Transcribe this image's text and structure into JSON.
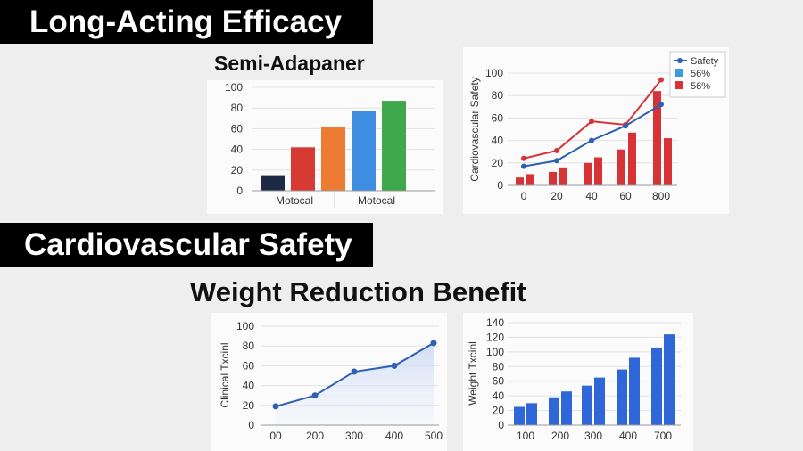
{
  "banners": {
    "top": "Long-Acting Efficacy",
    "bottom": "Cardiovascular Safety"
  },
  "headings": {
    "semi": "Semi-Adapaner",
    "weight": "Weight Reduction Benefit"
  },
  "colors": {
    "navy": "#1e2a44",
    "red": "#d63a33",
    "orange": "#ee7b34",
    "blue": "#3f8ee2",
    "green": "#40a84c",
    "line_blue": "#2d5fb3",
    "bar_red": "#d73236",
    "bar_blue": "#2f67d8",
    "legend_blue": "#3b9ae0"
  },
  "chart_data": [
    {
      "type": "bar",
      "title": "Semi-Adapaner",
      "categories": [
        "",
        "",
        "",
        "",
        ""
      ],
      "values": [
        15,
        42,
        62,
        77,
        87
      ],
      "bar_colors": [
        "#1e2a44",
        "#d63a33",
        "#ee7b34",
        "#3f8ee2",
        "#40a84c"
      ],
      "group_labels": [
        "Motocal",
        "Motocal"
      ],
      "yticks": [
        "0",
        "20",
        "40",
        "60",
        "80",
        "100"
      ],
      "ylim": [
        0,
        100
      ],
      "xlabel": "",
      "ylabel": ""
    },
    {
      "type": "bar+line",
      "ylabel": "Cardiovascular Safety",
      "xticks": [
        "0",
        "20",
        "40",
        "60",
        "800"
      ],
      "yticks": [
        "0",
        "20",
        "40",
        "60",
        "80",
        "100"
      ],
      "ylim": [
        0,
        100
      ],
      "legend": [
        "Safety",
        "56%",
        "56%"
      ],
      "bars": [
        7,
        10,
        12,
        16,
        20,
        25,
        32,
        47,
        84,
        42
      ],
      "line_safety": [
        17,
        22,
        40,
        53,
        72
      ],
      "line_red": [
        24,
        31,
        57,
        54,
        94
      ]
    },
    {
      "type": "area",
      "ylabel": "Clinical Txcinl",
      "x": [
        "00",
        "200",
        "300",
        "400",
        "500"
      ],
      "values": [
        19,
        30,
        54,
        60,
        83
      ],
      "yticks": [
        "0",
        "20",
        "40",
        "60",
        "80",
        "100"
      ],
      "ylim": [
        0,
        100
      ]
    },
    {
      "type": "bar",
      "ylabel": "Weight Txcinl",
      "xticks": [
        "100",
        "200",
        "300",
        "400",
        "700"
      ],
      "values": [
        25,
        30,
        38,
        46,
        54,
        65,
        76,
        92,
        106,
        124
      ],
      "yticks": [
        "0",
        "20",
        "40",
        "60",
        "80",
        "100",
        "120",
        "140"
      ],
      "ylim": [
        0,
        140
      ]
    }
  ]
}
